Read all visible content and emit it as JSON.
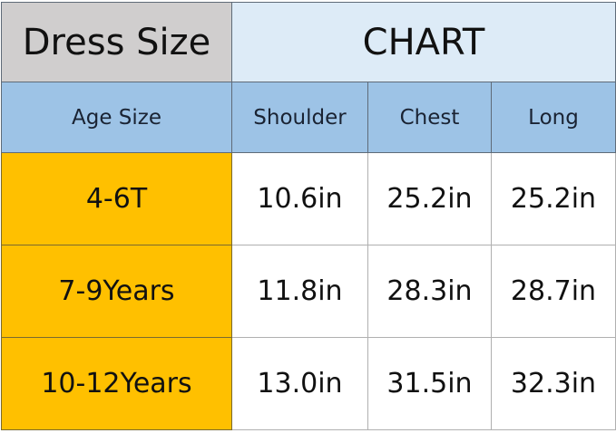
{
  "title": {
    "left": "Dress Size",
    "right": "CHART"
  },
  "colors": {
    "title_left_bg": "#d0cece",
    "title_right_bg": "#ddebf7",
    "header_bg": "#9dc3e6",
    "age_bg": "#ffc000"
  },
  "headers": [
    "Age Size",
    "Shoulder",
    "Chest",
    "Long"
  ],
  "rows": [
    {
      "age": "4-6T",
      "shoulder": "10.6in",
      "chest": "25.2in",
      "long": "25.2in"
    },
    {
      "age": "7-9Years",
      "shoulder": "11.8in",
      "chest": "28.3in",
      "long": "28.7in"
    },
    {
      "age": "10-12Years",
      "shoulder": "13.0in",
      "chest": "31.5in",
      "long": "32.3in"
    }
  ]
}
